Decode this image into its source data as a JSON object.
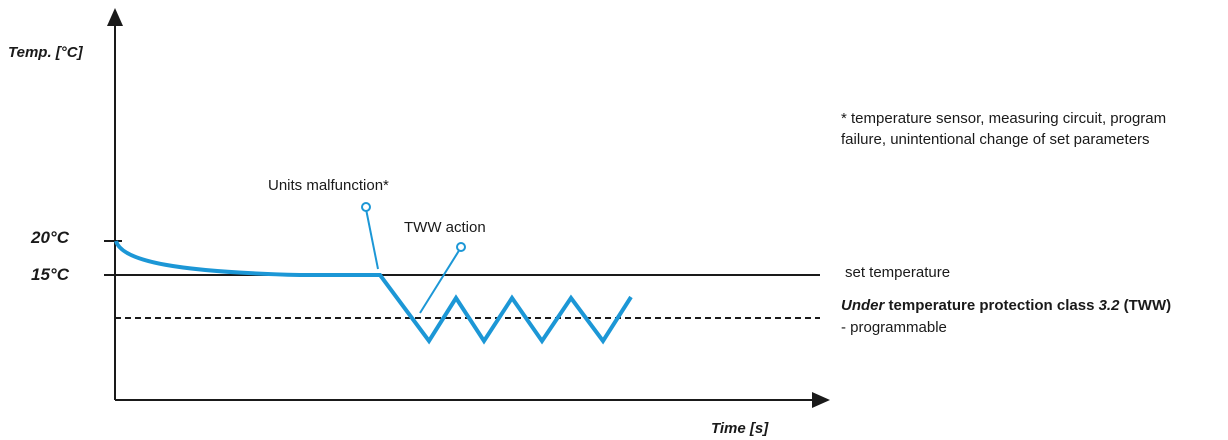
{
  "axes": {
    "y_title": "Temp. [°C]",
    "x_title": "Time [s]",
    "y_ticks": [
      "20°C",
      "15°C"
    ]
  },
  "callouts": {
    "malfunction": "Units malfunction*",
    "tww_action": "TWW action"
  },
  "legend": {
    "set_temperature": "set temperature",
    "under_word": "Under",
    "protection_text": "temperature protection class",
    "class_value": "3.2",
    "class_abbr": "(TWW)",
    "programmable": "- programmable"
  },
  "note": "* temperature sensor, measuring circuit, program failure, unintentional change of set parameters",
  "colors": {
    "curve": "#1c97d6",
    "axis": "#1a1a1a"
  }
}
